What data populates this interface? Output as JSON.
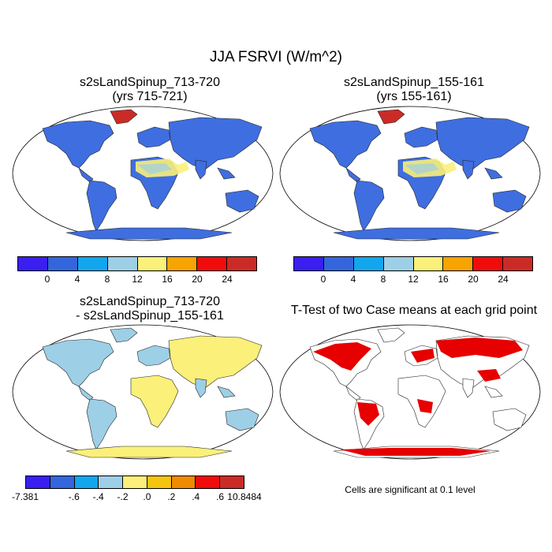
{
  "figure_title": "JJA FSRVI (W/m^2)",
  "panels": {
    "top_left": {
      "title_line1": "s2sLandSpinup_713-720",
      "title_line2": "(yrs 715-721)"
    },
    "top_right": {
      "title_line1": "s2sLandSpinup_155-161",
      "title_line2": "(yrs 155-161)"
    },
    "bottom_left": {
      "title_line1": "s2sLandSpinup_713-720",
      "title_line2": "- s2sLandSpinup_155-161"
    },
    "bottom_right": {
      "title": "T-Test of two Case means at each grid point",
      "note": "Cells are significant at 0.1 level"
    }
  },
  "colorbar_main": {
    "colors": [
      "#3a1ff0",
      "#3366dd",
      "#12a6ee",
      "#9dcfe6",
      "#faf07a",
      "#f7a300",
      "#f10c0c",
      "#cb2b26"
    ],
    "labels": [
      "0",
      "4",
      "8",
      "12",
      "16",
      "20",
      "24"
    ]
  },
  "colorbar_diff": {
    "colors": [
      "#3a1ff0",
      "#3366dd",
      "#12a6ee",
      "#9dcfe6",
      "#faf07a",
      "#f5c410",
      "#f08a00",
      "#f10c0c",
      "#cb2b26"
    ],
    "labels": [
      "-7.381",
      "-.6",
      "-.4",
      "-.2",
      ".0",
      ".2",
      ".4",
      ".6",
      "10.8484"
    ]
  },
  "colors": {
    "land_base": "#3f6ee0",
    "greenland": "#cb2b26",
    "desert_yellow": "#faf07a",
    "desert_light": "#9dcfe6",
    "sig_red": "#e60000"
  }
}
